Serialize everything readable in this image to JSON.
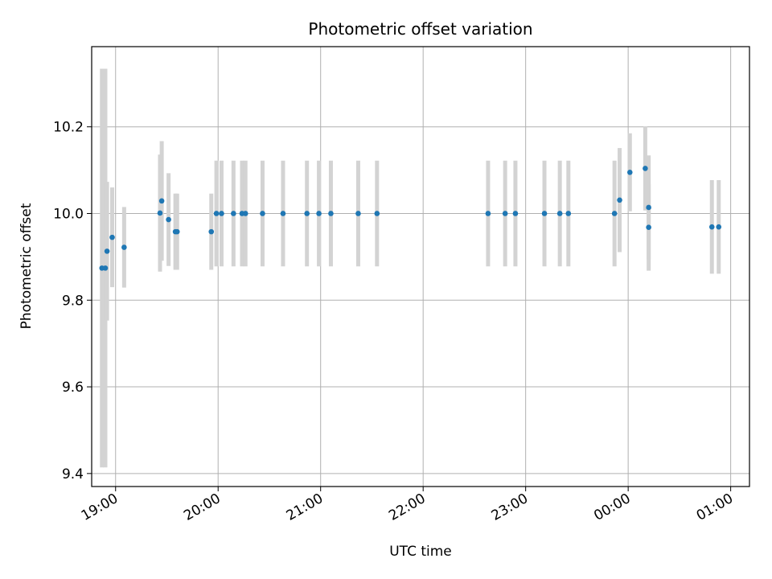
{
  "chart_data": {
    "type": "scatter",
    "title": "Photometric offset variation",
    "xlabel": "UTC time",
    "ylabel": "Photometric offset",
    "x_tick_labels": [
      "19:00",
      "20:00",
      "21:00",
      "22:00",
      "23:00",
      "00:00",
      "01:00"
    ],
    "y_ticks": [
      9.4,
      9.6,
      9.8,
      10.0,
      10.2
    ],
    "y_tick_labels": [
      "9.4",
      "9.6",
      "9.8",
      "10.0",
      "10.2"
    ],
    "ylim": [
      9.37,
      10.385
    ],
    "xlim": [
      "18:46",
      "01:11"
    ],
    "grid": true,
    "colors": {
      "marker": "#1f77b4",
      "errorbar": "#d3d3d3",
      "grid": "#b0b0b0"
    },
    "points": [
      {
        "x": "18:52",
        "y": 9.874,
        "err": 0.46
      },
      {
        "x": "18:54",
        "y": 9.874,
        "err": 0.46
      },
      {
        "x": "18:55",
        "y": 9.913,
        "err": 0.16
      },
      {
        "x": "18:58",
        "y": 9.945,
        "err": 0.115
      },
      {
        "x": "19:05",
        "y": 9.922,
        "err": 0.093
      },
      {
        "x": "19:26",
        "y": 10.001,
        "err": 0.135
      },
      {
        "x": "19:27",
        "y": 10.029,
        "err": 0.138
      },
      {
        "x": "19:31",
        "y": 9.986,
        "err": 0.107
      },
      {
        "x": "19:35",
        "y": 9.958,
        "err": 0.088
      },
      {
        "x": "19:36",
        "y": 9.958,
        "err": 0.088
      },
      {
        "x": "19:56",
        "y": 9.958,
        "err": 0.088
      },
      {
        "x": "19:59",
        "y": 10.0,
        "err": 0.122
      },
      {
        "x": "20:02",
        "y": 10.0,
        "err": 0.122
      },
      {
        "x": "20:09",
        "y": 10.0,
        "err": 0.122
      },
      {
        "x": "20:14",
        "y": 10.0,
        "err": 0.122
      },
      {
        "x": "20:16",
        "y": 10.0,
        "err": 0.122
      },
      {
        "x": "20:26",
        "y": 10.0,
        "err": 0.122
      },
      {
        "x": "20:38",
        "y": 10.0,
        "err": 0.122
      },
      {
        "x": "20:52",
        "y": 10.0,
        "err": 0.122
      },
      {
        "x": "20:59",
        "y": 10.0,
        "err": 0.122
      },
      {
        "x": "21:06",
        "y": 10.0,
        "err": 0.122
      },
      {
        "x": "21:22",
        "y": 10.0,
        "err": 0.122
      },
      {
        "x": "21:33",
        "y": 10.0,
        "err": 0.122
      },
      {
        "x": "22:38",
        "y": 10.0,
        "err": 0.122
      },
      {
        "x": "22:48",
        "y": 10.0,
        "err": 0.122
      },
      {
        "x": "22:54",
        "y": 10.0,
        "err": 0.122
      },
      {
        "x": "23:11",
        "y": 10.0,
        "err": 0.122
      },
      {
        "x": "23:20",
        "y": 10.0,
        "err": 0.122
      },
      {
        "x": "23:25",
        "y": 10.0,
        "err": 0.122
      },
      {
        "x": "23:52",
        "y": 10.0,
        "err": 0.122
      },
      {
        "x": "23:55",
        "y": 10.031,
        "err": 0.12
      },
      {
        "x": "00:01",
        "y": 10.095,
        "err": 0.09
      },
      {
        "x": "00:10",
        "y": 10.104,
        "err": 0.097
      },
      {
        "x": "00:12",
        "y": 10.014,
        "err": 0.12
      },
      {
        "x": "00:12",
        "y": 9.968,
        "err": 0.1
      },
      {
        "x": "00:49",
        "y": 9.969,
        "err": 0.108
      },
      {
        "x": "00:53",
        "y": 9.969,
        "err": 0.108
      }
    ]
  }
}
